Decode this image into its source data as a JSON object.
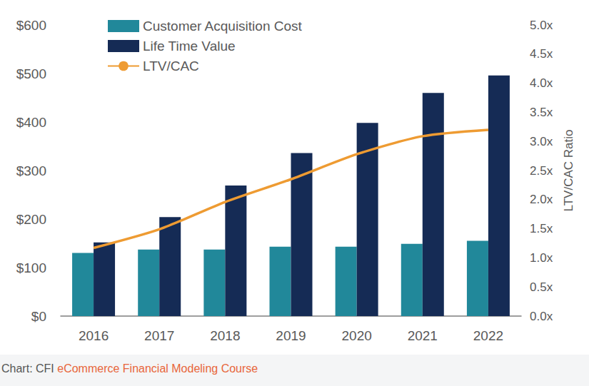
{
  "chart_data": {
    "type": "bar",
    "categories": [
      "2016",
      "2017",
      "2018",
      "2019",
      "2020",
      "2021",
      "2022"
    ],
    "series": [
      {
        "name": "Customer Acquisition Cost",
        "type": "bar",
        "color": "#21889a",
        "values": [
          130,
          137,
          137,
          143,
          143,
          149,
          155
        ]
      },
      {
        "name": "Life Time Value",
        "type": "bar",
        "color": "#152b55",
        "values": [
          152,
          204,
          269,
          336,
          398,
          460,
          496
        ]
      },
      {
        "name": "LTV/CAC",
        "type": "line",
        "axis": "y2",
        "color": "#ee9b32",
        "values": [
          1.17,
          1.49,
          1.96,
          2.35,
          2.78,
          3.09,
          3.2
        ]
      }
    ],
    "ylim": [
      0,
      600
    ],
    "yticks": [
      {
        "value": 0,
        "label": "$0"
      },
      {
        "value": 100,
        "label": "$100"
      },
      {
        "value": 200,
        "label": "$200"
      },
      {
        "value": 300,
        "label": "$300"
      },
      {
        "value": 400,
        "label": "$400"
      },
      {
        "value": 500,
        "label": "$500"
      },
      {
        "value": 600,
        "label": "$600"
      }
    ],
    "y2lim": [
      0,
      5
    ],
    "y2ticks": [
      {
        "value": 0,
        "label": "0.0x"
      },
      {
        "value": 0.5,
        "label": "0.5x"
      },
      {
        "value": 1,
        "label": "1.0x"
      },
      {
        "value": 1.5,
        "label": "1.5x"
      },
      {
        "value": 2,
        "label": "2.0x"
      },
      {
        "value": 2.5,
        "label": "2.5x"
      },
      {
        "value": 3,
        "label": "3.0x"
      },
      {
        "value": 3.5,
        "label": "3.5x"
      },
      {
        "value": 4,
        "label": "4.0x"
      },
      {
        "value": 4.5,
        "label": "4.5x"
      },
      {
        "value": 5,
        "label": "5.0x"
      }
    ],
    "y2label": "LTV/CAC Ratio",
    "grid": false,
    "legend": "top-left",
    "caption": {
      "text": "Chart: CFI",
      "link": "eCommerce Financial Modeling Course"
    }
  }
}
